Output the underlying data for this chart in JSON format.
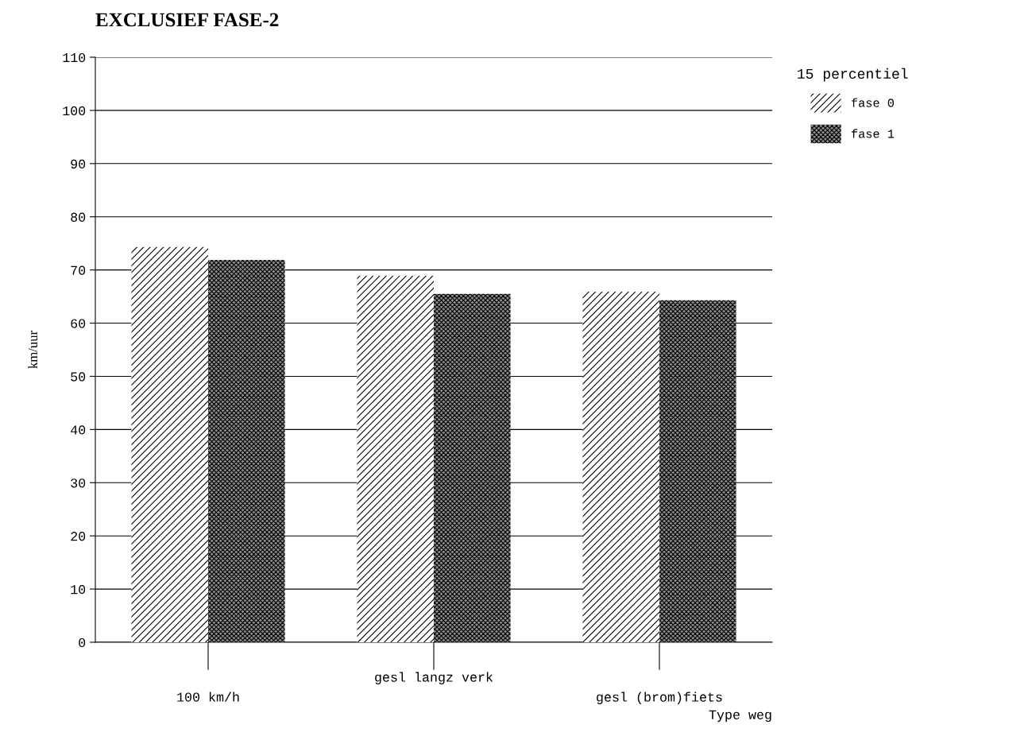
{
  "chart_data": {
    "type": "bar",
    "title": "EXCLUSIEF FASE-2",
    "xlabel": "Type weg",
    "ylabel": "km/uur",
    "legend_title": "15 percentiel",
    "categories": [
      "100 km/h",
      "gesl langz verk",
      "gesl (brom)fiets"
    ],
    "series": [
      {
        "name": "fase 0",
        "color": "#ffffff",
        "values": [
          74.3,
          68.9,
          65.9
        ]
      },
      {
        "name": "fase 1",
        "color": "#8c8c8c",
        "values": [
          71.9,
          65.5,
          64.3
        ]
      }
    ],
    "ylim": [
      0,
      110
    ],
    "yticks": [
      0,
      10,
      20,
      30,
      40,
      50,
      60,
      70,
      80,
      90,
      100,
      110
    ],
    "grid": "y",
    "legend": "top right"
  }
}
